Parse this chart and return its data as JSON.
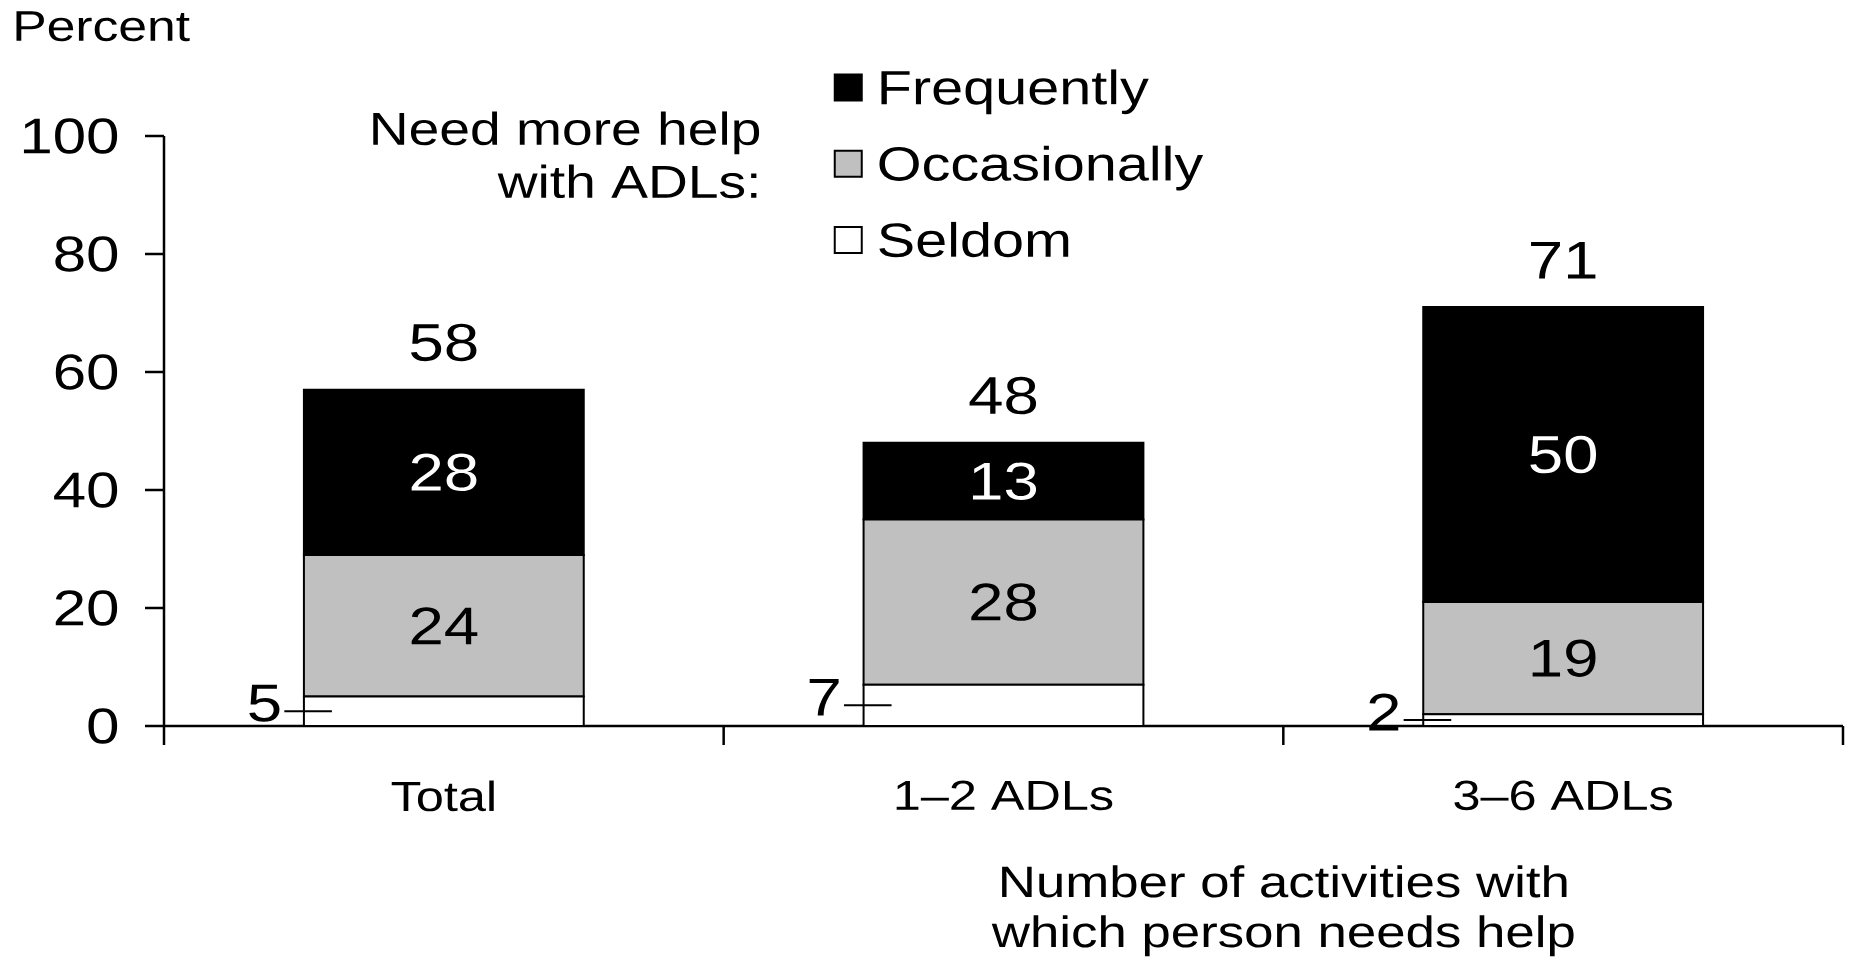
{
  "chart_data": {
    "type": "bar",
    "stacked": true,
    "ylabel": "Percent",
    "xlabel": "Number of activities with which person needs help",
    "legend_title": "Need more help with ADLs:",
    "categories": [
      "Total",
      "1–2 ADLs",
      "3–6 ADLs"
    ],
    "series": [
      {
        "name": "Seldom",
        "color": "#ffffff",
        "values": [
          5,
          7,
          2
        ]
      },
      {
        "name": "Occasionally",
        "color": "#c0c0c0",
        "values": [
          24,
          28,
          19
        ]
      },
      {
        "name": "Frequently",
        "color": "#000000",
        "values": [
          28,
          13,
          50
        ]
      }
    ],
    "ylim": [
      0,
      100
    ],
    "yticks": [
      0,
      20,
      40,
      60,
      80,
      100
    ],
    "data_labels": true,
    "totals": [
      "58",
      "48",
      "71"
    ],
    "legend": "top"
  }
}
